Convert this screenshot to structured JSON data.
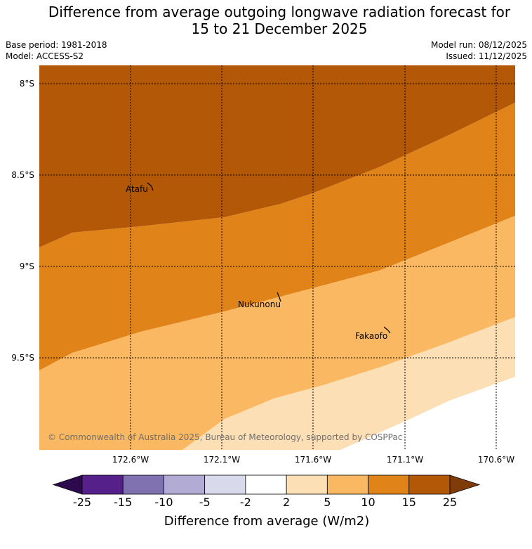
{
  "header": {
    "title_line1": "Difference from average outgoing longwave radiation forecast for",
    "title_line2": "15 to 21 December 2025",
    "base_period": "Base period: 1981-2018",
    "model": "Model: ACCESS-S2",
    "model_run": "Model run: 08/12/2025",
    "issued": "Issued: 11/12/2025"
  },
  "map": {
    "lat_labels": [
      "8°S",
      "8.5°S",
      "9°S",
      "9.5°S"
    ],
    "lon_labels": [
      "172.6°W",
      "172.1°W",
      "171.6°W",
      "171.1°W",
      "170.6°W"
    ],
    "places": [
      {
        "name": "Atafu"
      },
      {
        "name": "Nukunonu"
      },
      {
        "name": "Fakaofo"
      }
    ],
    "copyright": "© Commonwealth of Australia 2025, Bureau of Meteorology, supported by COSPPac"
  },
  "colorbar": {
    "ticks": [
      "-25",
      "-15",
      "-10",
      "-5",
      "-2",
      "2",
      "5",
      "10",
      "15",
      "25"
    ],
    "colors": [
      "#55208a",
      "#8072b0",
      "#b2abd3",
      "#d9d9ec",
      "#ffffff",
      "#fddfb5",
      "#fbb862",
      "#e08318",
      "#b35806"
    ],
    "low_extend_color": "#2d0a4e",
    "high_extend_color": "#7f3b08",
    "title": "Difference from average (W/m2)"
  }
}
